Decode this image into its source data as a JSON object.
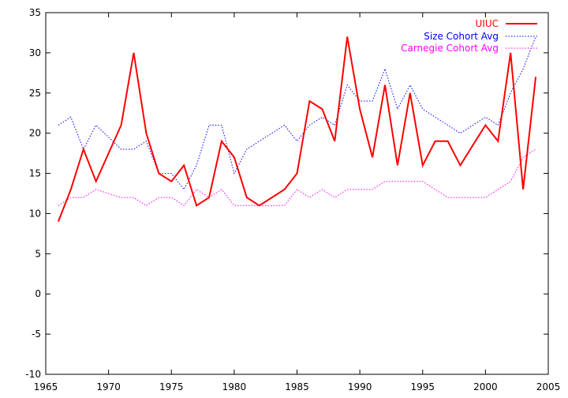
{
  "chart_data": {
    "type": "line",
    "title": "",
    "xlabel": "",
    "ylabel": "",
    "xlim": [
      1965,
      2005
    ],
    "ylim": [
      -10,
      35
    ],
    "xticks": [
      1965,
      1970,
      1975,
      1980,
      1985,
      1990,
      1995,
      2000,
      2005
    ],
    "yticks": [
      -10,
      -5,
      0,
      5,
      10,
      15,
      20,
      25,
      30,
      35
    ],
    "grid": false,
    "legend_position": "top-right",
    "x": [
      1966,
      1967,
      1968,
      1969,
      1970,
      1971,
      1972,
      1973,
      1974,
      1975,
      1976,
      1977,
      1978,
      1979,
      1980,
      1981,
      1982,
      1983,
      1984,
      1985,
      1986,
      1987,
      1988,
      1989,
      1990,
      1991,
      1992,
      1993,
      1994,
      1995,
      1996,
      1997,
      1998,
      1999,
      2000,
      2001,
      2002,
      2003,
      2004
    ],
    "series": [
      {
        "name": "UIUC",
        "color": "#ff0000",
        "style": "solid",
        "values": [
          9,
          13,
          18,
          14,
          17.5,
          21,
          30,
          20,
          15,
          14,
          16,
          11,
          12,
          19,
          17,
          12,
          11,
          12,
          13,
          15,
          24,
          23,
          19,
          32,
          23,
          17,
          26,
          16,
          25,
          16,
          19,
          19,
          16,
          18.5,
          21,
          19,
          30,
          13,
          27
        ]
      },
      {
        "name": "Size Cohort Avg",
        "color": "#0000ff",
        "style": "dotted",
        "values": [
          21,
          22,
          18,
          21,
          19.5,
          18,
          18,
          19,
          15,
          15,
          13,
          16,
          21,
          21,
          15,
          18,
          19,
          20,
          21,
          19,
          21,
          22,
          21,
          26,
          24,
          24,
          28,
          23,
          26,
          23,
          22,
          21,
          20,
          21,
          22,
          21,
          25,
          28,
          32
        ]
      },
      {
        "name": "Carnegie Cohort Avg",
        "color": "#ff00ff",
        "style": "dotted",
        "values": [
          11,
          12,
          12,
          13,
          12.5,
          12,
          12,
          11,
          12,
          12,
          11,
          13,
          12,
          13,
          11,
          11,
          11,
          11,
          11,
          13,
          12,
          13,
          12,
          13,
          13,
          13,
          14,
          14,
          14,
          14,
          13,
          12,
          12,
          12,
          12,
          13,
          14,
          17,
          18
        ]
      }
    ]
  }
}
